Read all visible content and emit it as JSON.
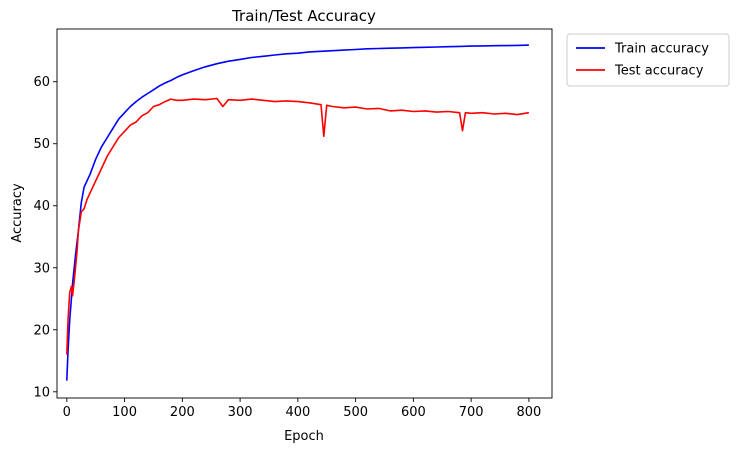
{
  "chart_data": {
    "type": "line",
    "title": "Train/Test Accuracy",
    "xlabel": "Epoch",
    "ylabel": "Accuracy",
    "xlim": [
      -17,
      840
    ],
    "ylim": [
      9,
      68.5
    ],
    "xticks": [
      0,
      100,
      200,
      300,
      400,
      500,
      600,
      700,
      800
    ],
    "yticks": [
      10,
      20,
      30,
      40,
      50,
      60
    ],
    "grid": false,
    "legend_position": "outside top-right",
    "series": [
      {
        "name": "Train accuracy",
        "color": "#0000ff",
        "x": [
          0,
          2,
          5,
          10,
          15,
          20,
          25,
          30,
          40,
          50,
          60,
          70,
          80,
          90,
          100,
          110,
          120,
          130,
          140,
          150,
          160,
          170,
          180,
          190,
          200,
          220,
          240,
          260,
          280,
          300,
          320,
          340,
          360,
          380,
          400,
          420,
          440,
          460,
          480,
          500,
          520,
          540,
          560,
          580,
          600,
          620,
          640,
          660,
          680,
          700,
          720,
          740,
          760,
          780,
          800
        ],
        "y": [
          11.8,
          16.5,
          21.5,
          27.5,
          32.0,
          36.0,
          40.5,
          43.0,
          45.0,
          47.5,
          49.5,
          51.0,
          52.5,
          54.0,
          55.0,
          56.0,
          56.8,
          57.5,
          58.1,
          58.7,
          59.3,
          59.8,
          60.2,
          60.7,
          61.1,
          61.8,
          62.4,
          62.9,
          63.3,
          63.6,
          63.9,
          64.1,
          64.3,
          64.5,
          64.6,
          64.8,
          64.9,
          65.0,
          65.1,
          65.2,
          65.3,
          65.35,
          65.4,
          65.45,
          65.5,
          65.55,
          65.6,
          65.65,
          65.7,
          65.75,
          65.78,
          65.8,
          65.82,
          65.85,
          65.9
        ]
      },
      {
        "name": "Test accuracy",
        "color": "#ff0000",
        "x": [
          0,
          2,
          5,
          8,
          10,
          13,
          15,
          18,
          20,
          25,
          30,
          35,
          40,
          50,
          60,
          70,
          80,
          90,
          100,
          110,
          120,
          130,
          140,
          150,
          160,
          170,
          180,
          190,
          200,
          220,
          240,
          260,
          270,
          280,
          300,
          320,
          340,
          360,
          380,
          400,
          420,
          440,
          445,
          450,
          460,
          480,
          500,
          520,
          540,
          560,
          580,
          600,
          620,
          640,
          660,
          680,
          685,
          690,
          700,
          720,
          740,
          760,
          780,
          800
        ],
        "y": [
          16.0,
          21.5,
          26.0,
          27.0,
          25.5,
          28.0,
          30.0,
          33.0,
          36.0,
          39.0,
          39.5,
          41.0,
          42.0,
          44.0,
          46.0,
          48.0,
          49.5,
          51.0,
          52.0,
          53.0,
          53.5,
          54.5,
          55.0,
          56.0,
          56.3,
          56.8,
          57.2,
          57.0,
          57.0,
          57.2,
          57.1,
          57.3,
          56.0,
          57.1,
          57.0,
          57.2,
          57.0,
          56.8,
          56.9,
          56.8,
          56.6,
          56.3,
          51.2,
          56.2,
          56.0,
          55.8,
          55.9,
          55.6,
          55.7,
          55.3,
          55.4,
          55.2,
          55.3,
          55.1,
          55.2,
          55.0,
          52.1,
          55.0,
          54.9,
          55.0,
          54.8,
          54.9,
          54.7,
          55.0
        ]
      }
    ]
  }
}
